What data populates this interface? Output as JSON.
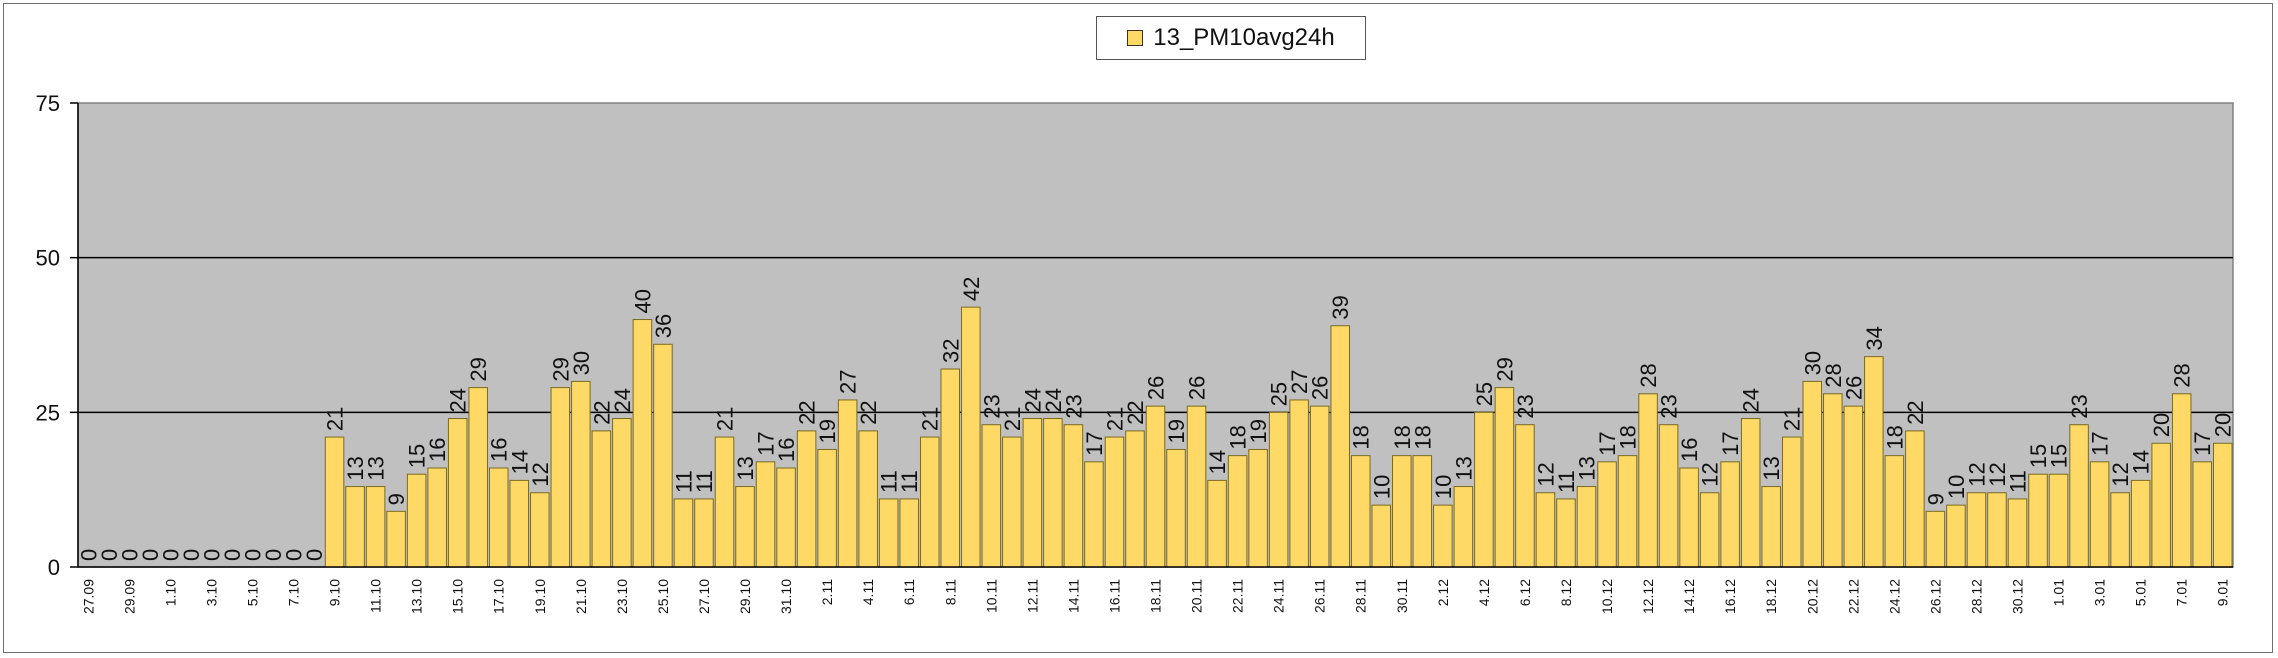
{
  "chart_data": {
    "type": "bar",
    "title": "",
    "xlabel": "",
    "ylabel": "",
    "ylim": [
      0,
      75
    ],
    "yticks": [
      0,
      25,
      50,
      75
    ],
    "grid": true,
    "legend_position": "top-center",
    "colors": {
      "bar": "#ffd966",
      "bar_edge": "#7a6a20",
      "plot_bg": "#c0c0c0",
      "grid": "#000000"
    },
    "tick_labels": [
      "27.09",
      "29.09",
      "1.10",
      "3.10",
      "5.10",
      "7.10",
      "9.10",
      "11.10",
      "13.10",
      "15.10",
      "17.10",
      "19.10",
      "21.10",
      "23.10",
      "25.10",
      "27.10",
      "29.10",
      "31.10",
      "2.11",
      "4.11",
      "6.11",
      "8.11",
      "10.11",
      "12.11",
      "14.11",
      "16.11",
      "18.11",
      "20.11",
      "22.11",
      "24.11",
      "26.11",
      "28.11",
      "30.11",
      "2.12",
      "4.12",
      "6.12",
      "8.12",
      "10.12",
      "12.12",
      "14.12",
      "16.12",
      "18.12",
      "20.12",
      "22.12",
      "24.12",
      "26.12",
      "28.12",
      "30.12",
      "1.01",
      "3.01",
      "5.01",
      "7.01",
      "9.01"
    ],
    "series": [
      {
        "name": "13_PM10avg24h",
        "values": [
          0,
          0,
          0,
          0,
          0,
          0,
          0,
          0,
          0,
          0,
          0,
          0,
          21,
          13,
          13,
          9,
          15,
          16,
          24,
          29,
          16,
          14,
          12,
          29,
          30,
          22,
          24,
          40,
          36,
          11,
          11,
          21,
          13,
          17,
          16,
          22,
          19,
          27,
          22,
          11,
          11,
          21,
          32,
          42,
          23,
          21,
          24,
          24,
          23,
          17,
          21,
          22,
          26,
          19,
          26,
          14,
          18,
          19,
          25,
          27,
          26,
          39,
          18,
          10,
          18,
          18,
          10,
          13,
          25,
          29,
          23,
          12,
          11,
          13,
          17,
          18,
          28,
          23,
          16,
          12,
          17,
          24,
          13,
          21,
          30,
          28,
          26,
          34,
          18,
          22,
          9,
          10,
          12,
          12,
          11,
          15,
          15,
          23,
          17,
          12,
          14,
          20,
          28,
          17,
          20
        ]
      }
    ]
  }
}
